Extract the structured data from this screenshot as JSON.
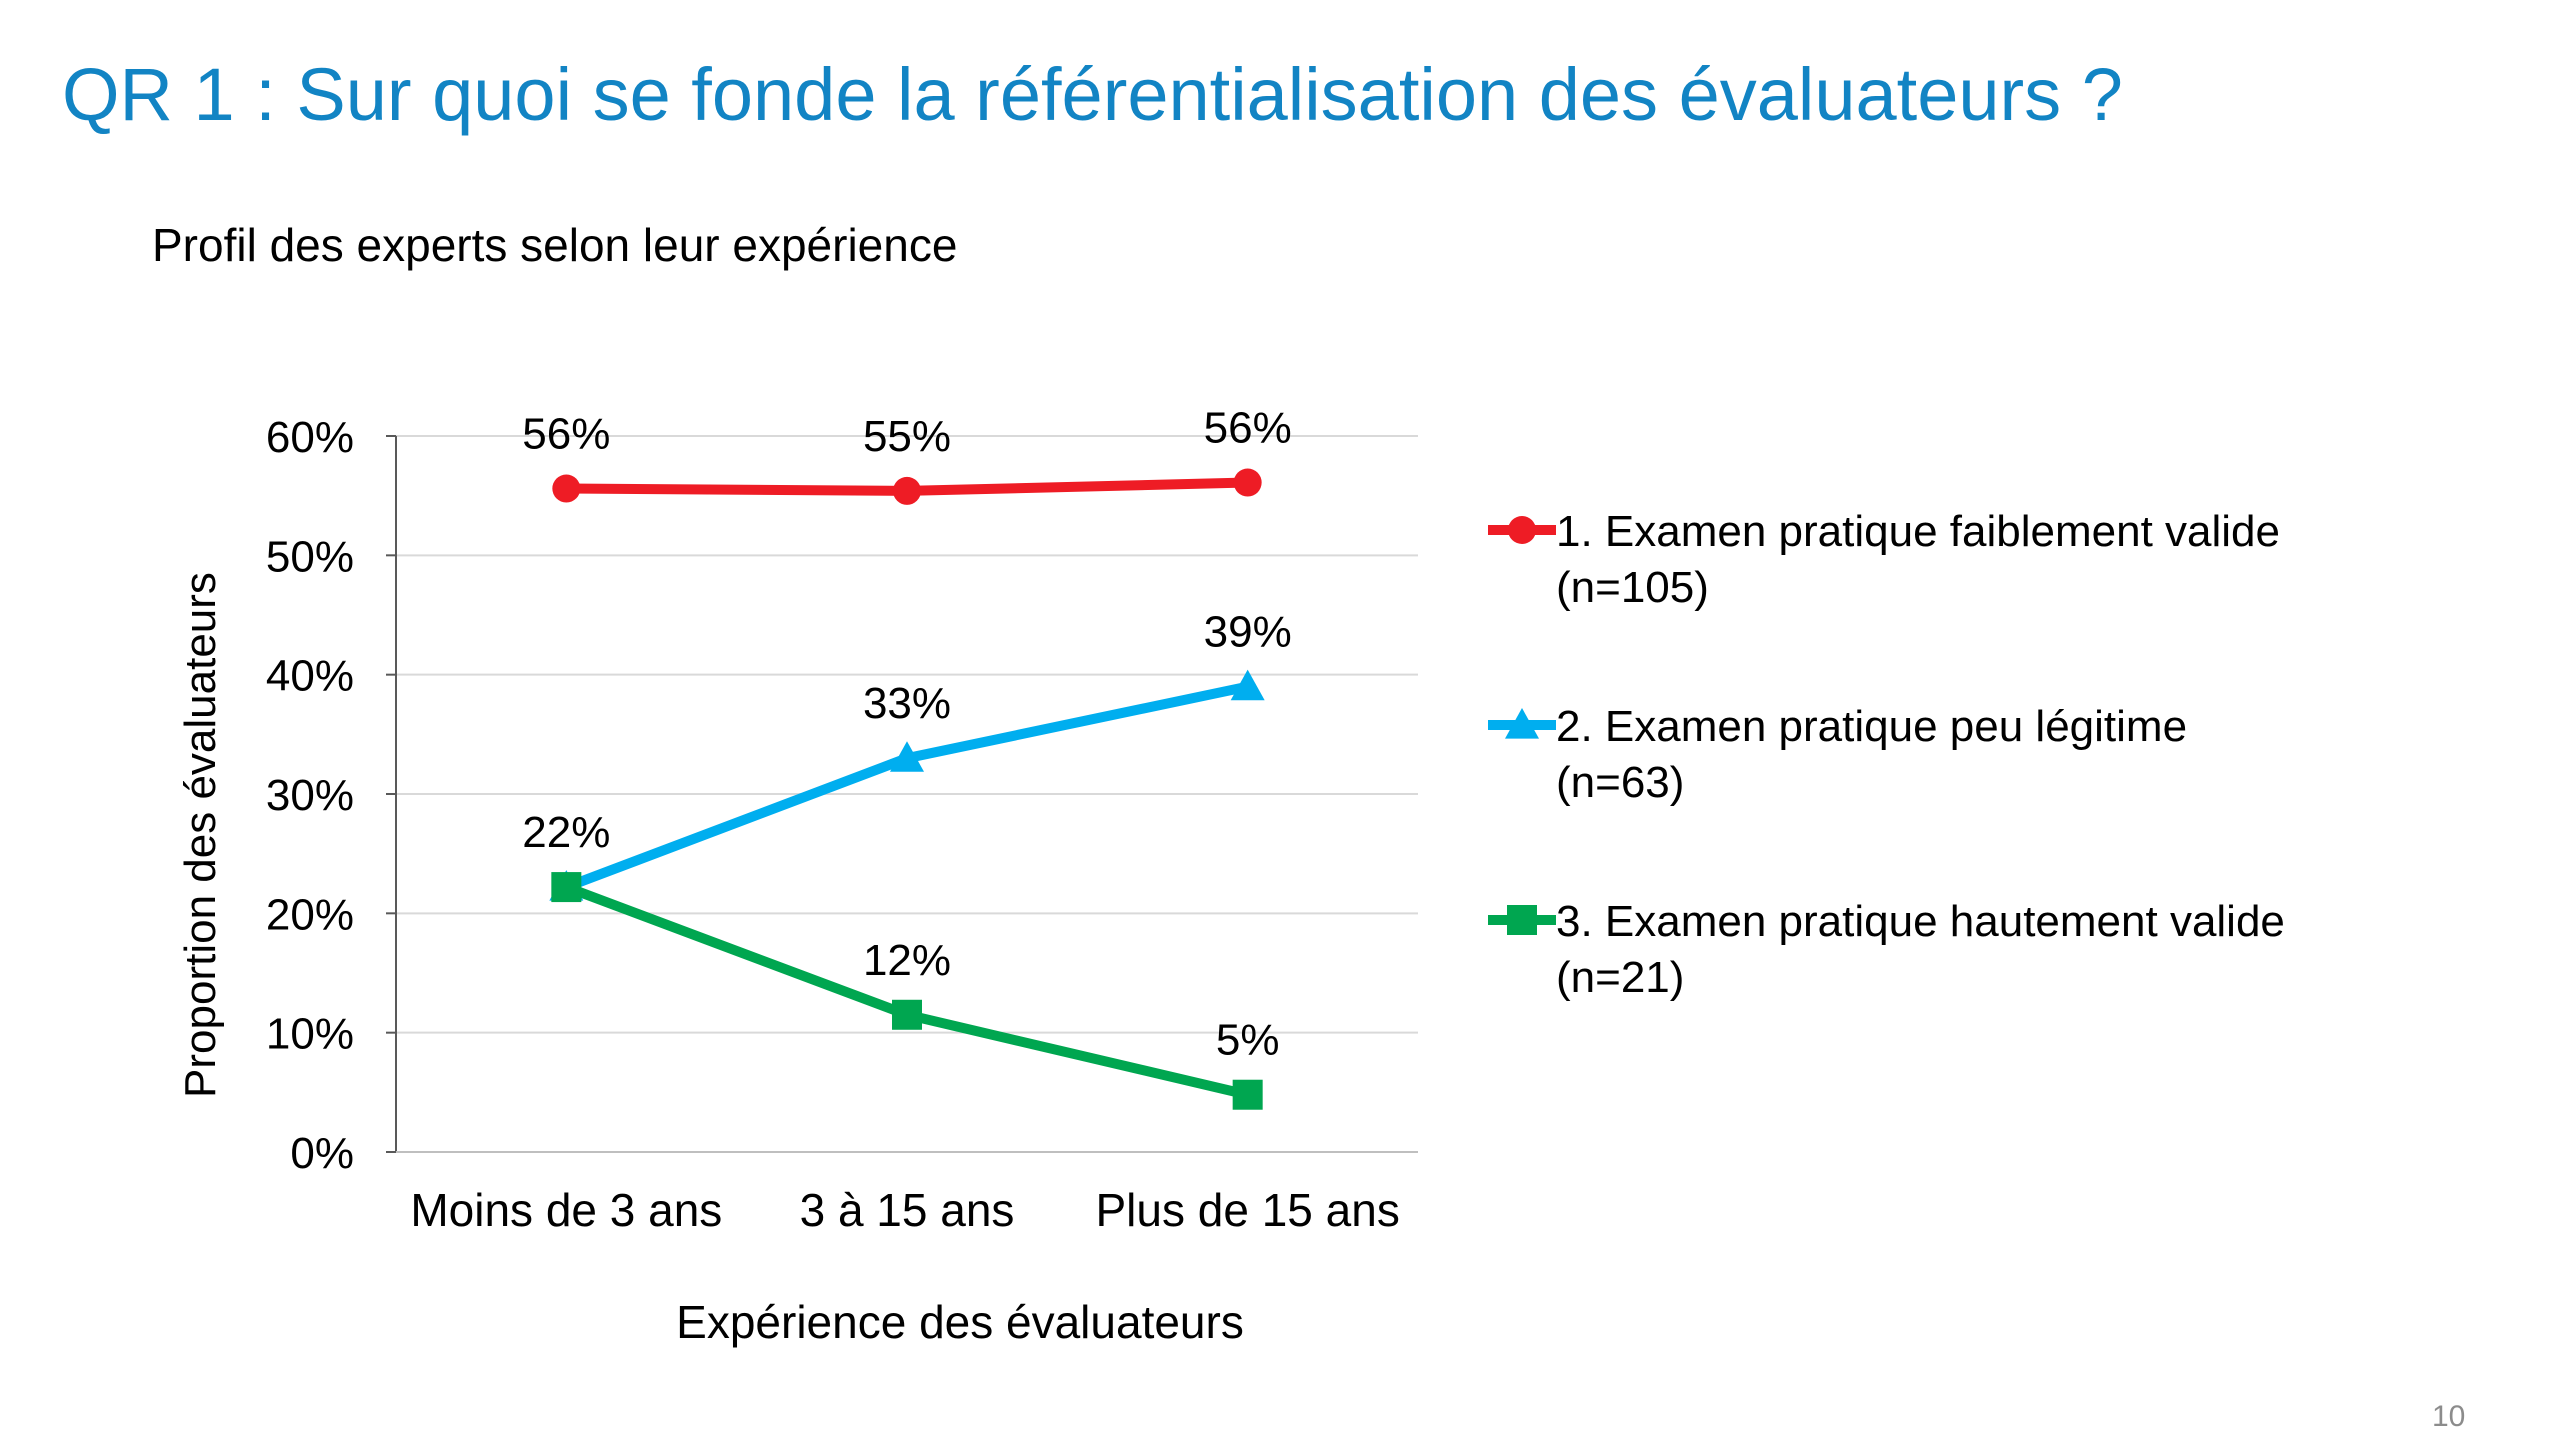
{
  "slide": {
    "title": "QR 1 : Sur quoi se fonde la référentialisation des évaluateurs ?",
    "page_number": "10"
  },
  "chart_data": {
    "type": "line",
    "title": "Profil des experts selon leur expérience",
    "xlabel": "Expérience des évaluateurs",
    "ylabel": "Proportion des évaluateurs",
    "categories": [
      "Moins de 3 ans",
      "3 à 15 ans",
      "Plus de 15 ans"
    ],
    "ylim": [
      0,
      60
    ],
    "yticks": [
      0,
      10,
      20,
      30,
      40,
      50,
      60
    ],
    "ytick_labels": [
      "0%",
      "10%",
      "20%",
      "30%",
      "40%",
      "50%",
      "60%"
    ],
    "grid": true,
    "legend_position": "right",
    "series": [
      {
        "name": "1. Examen pratique faiblement valide",
        "name_line2": "(n=105)",
        "values": [
          55.6,
          55.4,
          56.1
        ],
        "labels": [
          "56%",
          "55%",
          "56%"
        ],
        "color": "#ee1c25",
        "marker": "circle"
      },
      {
        "name": "2. Examen pratique peu légitime",
        "name_line2": "(n=63)",
        "values": [
          22.2,
          33.0,
          39.0
        ],
        "labels": [
          "22%",
          "33%",
          "39%"
        ],
        "color": "#00aeef",
        "marker": "triangle"
      },
      {
        "name": "3. Examen pratique hautement valide",
        "name_line2": "(n=21)",
        "values": [
          22.2,
          11.5,
          4.8
        ],
        "labels": [
          "",
          "12%",
          "5%"
        ],
        "color": "#00a650",
        "marker": "square"
      }
    ]
  }
}
